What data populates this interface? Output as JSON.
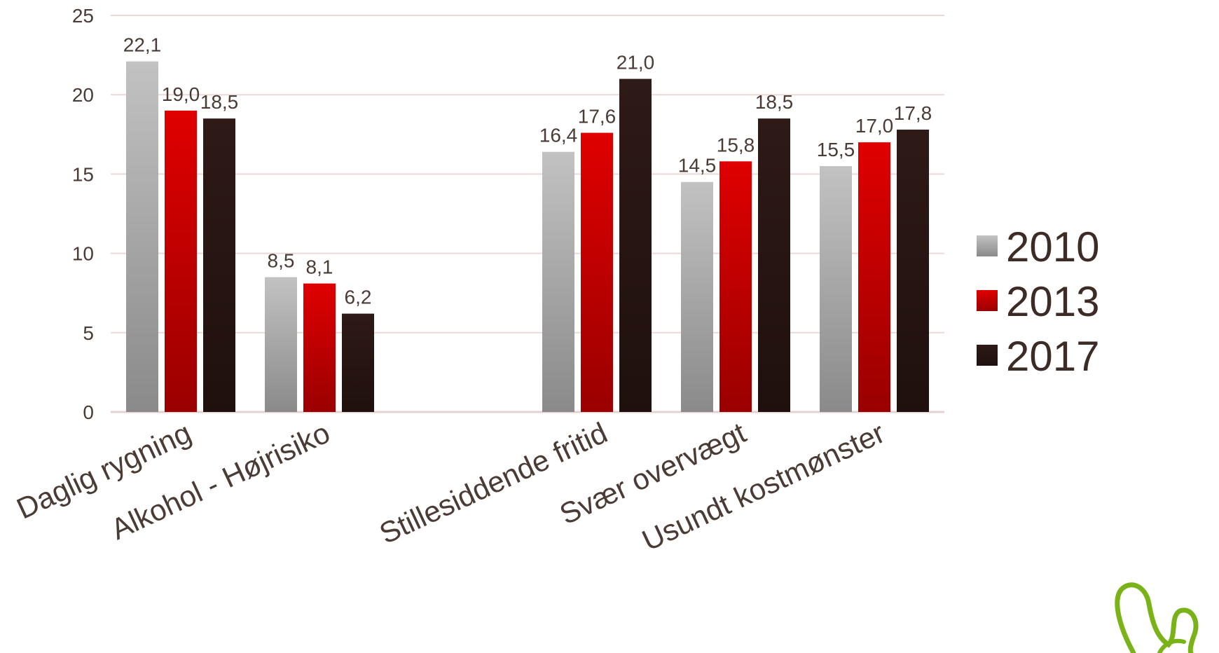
{
  "chart_data": {
    "type": "bar",
    "title": "",
    "xlabel": "",
    "ylabel": "",
    "ylim": [
      0,
      25
    ],
    "yticks": [
      0,
      5,
      10,
      15,
      20,
      25
    ],
    "grid": true,
    "legend_position": "right",
    "categories": [
      "Daglig rygning",
      "Alkohol - Højrisiko",
      "",
      "Stillesiddende fritid",
      "Svær overvægt",
      "Usundt kostmønster"
    ],
    "series": [
      {
        "name": "2010",
        "color": "#a8a8a8",
        "values": [
          22.1,
          8.5,
          null,
          16.4,
          14.5,
          15.5
        ],
        "labels": [
          "22,1",
          "8,5",
          "",
          "16,4",
          "14,5",
          "15,5"
        ]
      },
      {
        "name": "2013",
        "color": "#cc0000",
        "values": [
          19.0,
          8.1,
          null,
          17.6,
          15.8,
          17.0
        ],
        "labels": [
          "19,0",
          "8,1",
          "",
          "17,6",
          "15,8",
          "17,0"
        ]
      },
      {
        "name": "2017",
        "color": "#2b1614",
        "values": [
          18.5,
          6.2,
          null,
          21.0,
          18.5,
          17.8
        ],
        "labels": [
          "18,5",
          "6,2",
          "",
          "21,0",
          "18,5",
          "17,8"
        ]
      }
    ]
  },
  "logo": {
    "name": "leaf-logo",
    "color": "#7ab317"
  }
}
